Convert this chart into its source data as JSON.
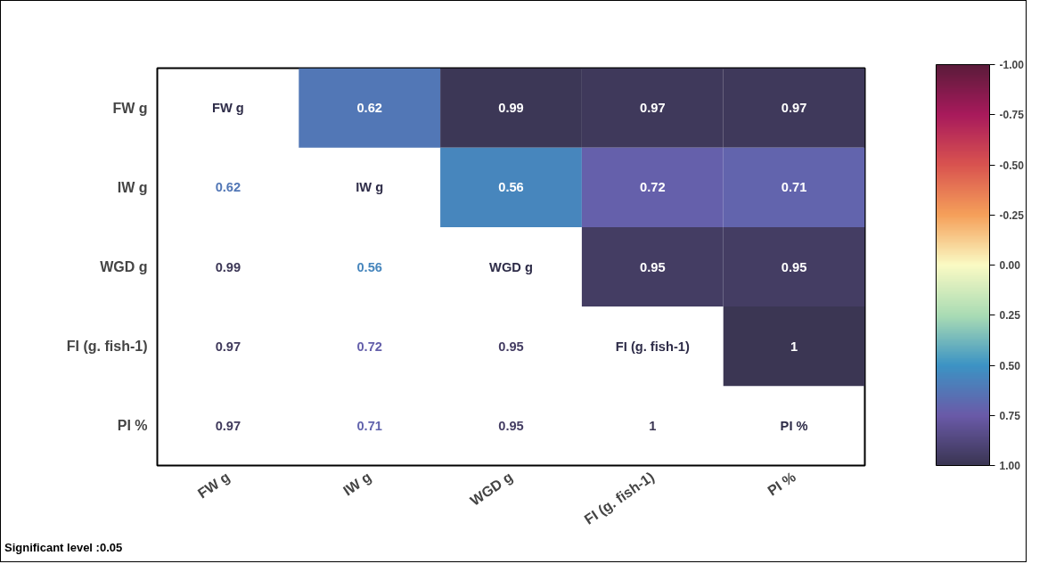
{
  "chart_data": {
    "type": "heatmap",
    "categories": [
      "FW g",
      "IW g",
      "WGD g",
      "FI (g. fish-1)",
      "PI %"
    ],
    "y_categories": [
      "FW g",
      "IW g",
      "WGD g",
      "FI (g. fish-1)",
      "PI %"
    ],
    "cells": [
      [
        null,
        0.62,
        0.99,
        0.97,
        0.97
      ],
      [
        null,
        null,
        0.56,
        0.72,
        0.71
      ],
      [
        null,
        null,
        null,
        0.95,
        0.95
      ],
      [
        null,
        null,
        null,
        null,
        1
      ],
      [
        null,
        null,
        null,
        null,
        null
      ]
    ],
    "cell_labels": [
      [
        "FW g",
        "0.62",
        "0.99",
        "0.97",
        "0.97"
      ],
      [
        "0.62",
        "IW g",
        "0.56",
        "0.72",
        "0.71"
      ],
      [
        "0.99",
        "0.56",
        "WGD g",
        "0.95",
        "0.95"
      ],
      [
        "0.97",
        "0.72",
        "0.95",
        "FI (g. fish-1)",
        "1"
      ],
      [
        "0.97",
        "0.71",
        "0.95",
        "1",
        "PI %"
      ]
    ],
    "clim": [
      -1,
      1
    ],
    "cticks": [
      {
        "value": -1,
        "label": "-1.00"
      },
      {
        "value": -0.75,
        "label": "-0.75"
      },
      {
        "value": -0.5,
        "label": "-0.50"
      },
      {
        "value": -0.25,
        "label": "-0.25"
      },
      {
        "value": 0,
        "label": "0.00"
      },
      {
        "value": 0.25,
        "label": "0.25"
      },
      {
        "value": 0.5,
        "label": "0.50"
      },
      {
        "value": 0.75,
        "label": "0.75"
      },
      {
        "value": 1,
        "label": "1.00"
      }
    ],
    "annotations": [
      "Significant level :0.05"
    ]
  }
}
